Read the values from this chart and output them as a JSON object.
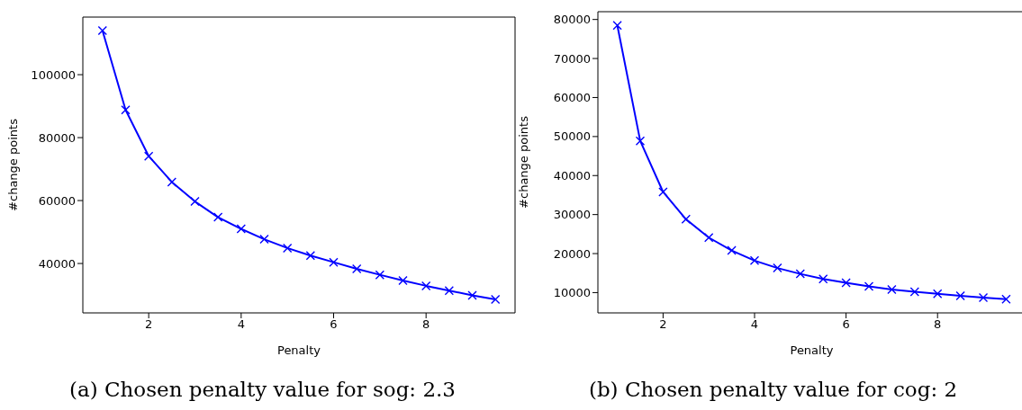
{
  "chart_data": [
    {
      "type": "line",
      "xlabel": "Penalty",
      "ylabel": "#change points",
      "x": [
        1,
        1.5,
        2,
        2.5,
        3,
        3.5,
        4,
        4.5,
        5,
        5.5,
        6,
        6.5,
        7,
        7.5,
        8,
        8.5,
        9,
        9.5
      ],
      "series": [
        {
          "color": "#0000ff",
          "values": [
            114000,
            88800,
            74100,
            65900,
            59700,
            54700,
            51000,
            47700,
            44900,
            42500,
            40400,
            38300,
            36400,
            34600,
            32900,
            31400,
            29900,
            28600
          ]
        }
      ],
      "xlim": [
        0.575,
        9.925
      ],
      "xticks": [
        2,
        4,
        6,
        8
      ],
      "ylim": [
        24300,
        118300
      ],
      "yticks": [
        40000,
        60000,
        80000,
        100000
      ],
      "marker": "cross",
      "line_style": "solid",
      "annotations": [
        "(a) Chosen penalty value for sog: 2.3"
      ]
    },
    {
      "type": "line",
      "xlabel": "Penalty",
      "ylabel": "#change points",
      "x": [
        1,
        1.5,
        2,
        2.5,
        3,
        3.5,
        4,
        4.5,
        5,
        5.5,
        6,
        6.5,
        7,
        7.5,
        8,
        8.5,
        9,
        9.5
      ],
      "series": [
        {
          "color": "#0000ff",
          "values": [
            78500,
            48900,
            35800,
            28800,
            24100,
            20800,
            18200,
            16300,
            14800,
            13500,
            12500,
            11600,
            10800,
            10200,
            9700,
            9200,
            8700,
            8300
          ]
        }
      ],
      "xlim": [
        0.575,
        9.925
      ],
      "xticks": [
        2,
        4,
        6,
        8
      ],
      "ylim": [
        4800,
        82000
      ],
      "yticks": [
        10000,
        20000,
        30000,
        40000,
        50000,
        60000,
        70000,
        80000
      ],
      "marker": "cross",
      "line_style": "solid",
      "annotations": [
        "(b) Chosen penalty value for cog: 2"
      ]
    }
  ]
}
